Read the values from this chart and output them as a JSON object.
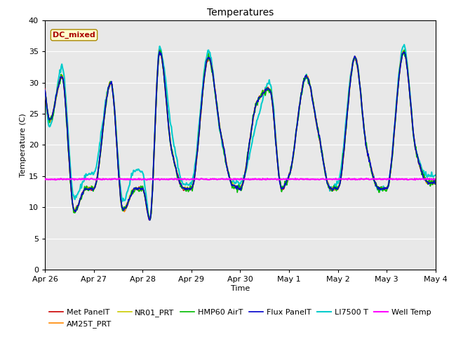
{
  "title": "Temperatures",
  "xlabel": "Time",
  "ylabel": "Temperature (C)",
  "ylim": [
    0,
    40
  ],
  "xlim": [
    0,
    8.0
  ],
  "xtick_labels": [
    "Apr 26",
    "Apr 27",
    "Apr 28",
    "Apr 29",
    "Apr 30",
    "May 1",
    "May 2",
    "May 3",
    "May 4"
  ],
  "xtick_positions": [
    0,
    1,
    2,
    3,
    4,
    5,
    6,
    7,
    8
  ],
  "ytick_positions": [
    0,
    5,
    10,
    15,
    20,
    25,
    30,
    35,
    40
  ],
  "background_color": "#e8e8e8",
  "annotation_text": "DC_mixed",
  "annotation_bbox_facecolor": "#ffffcc",
  "annotation_bbox_edgecolor": "#aa8800",
  "annotation_color": "#aa0000",
  "well_temp_value": 14.5,
  "figsize": [
    6.4,
    4.8
  ],
  "dpi": 100,
  "series": [
    {
      "name": "Met PanelT",
      "color": "#cc0000",
      "lw": 1.2,
      "zorder": 3
    },
    {
      "name": "AM25T_PRT",
      "color": "#ff8800",
      "lw": 1.2,
      "zorder": 3
    },
    {
      "name": "NR01_PRT",
      "color": "#cccc00",
      "lw": 1.2,
      "zorder": 3
    },
    {
      "name": "HMP60 AirT",
      "color": "#00bb00",
      "lw": 1.2,
      "zorder": 3
    },
    {
      "name": "Flux PanelT",
      "color": "#0000cc",
      "lw": 1.2,
      "zorder": 3
    },
    {
      "name": "LI7500 T",
      "color": "#00cccc",
      "lw": 1.5,
      "zorder": 2
    },
    {
      "name": "Well Temp",
      "color": "#ff00ff",
      "lw": 1.5,
      "zorder": 4
    }
  ],
  "key_times": [
    0.0,
    0.1,
    0.35,
    0.6,
    0.85,
    1.0,
    1.35,
    1.6,
    1.85,
    2.0,
    2.15,
    2.35,
    2.6,
    2.85,
    3.0,
    3.35,
    3.6,
    3.85,
    4.0,
    4.35,
    4.6,
    4.85,
    5.0,
    5.35,
    5.6,
    5.85,
    6.0,
    6.35,
    6.6,
    6.85,
    7.0,
    7.35,
    7.6,
    7.85,
    8.0
  ],
  "key_base": [
    29,
    24,
    31,
    9.5,
    13,
    13,
    30,
    9.5,
    13,
    13,
    8,
    35,
    19,
    13,
    13,
    34,
    22,
    13.5,
    13,
    27,
    29,
    13,
    15,
    31,
    22,
    13,
    13,
    34,
    19,
    13,
    13,
    35,
    19,
    14,
    14
  ],
  "key_li7500": [
    28.5,
    23,
    32.5,
    11.5,
    15,
    15.5,
    30,
    11,
    16,
    15.5,
    8,
    35.5,
    22,
    13.5,
    14,
    35,
    21.5,
    14,
    14,
    24,
    30,
    13,
    15,
    31,
    22,
    13,
    14,
    34,
    19,
    13,
    13,
    36,
    19,
    15,
    15
  ]
}
